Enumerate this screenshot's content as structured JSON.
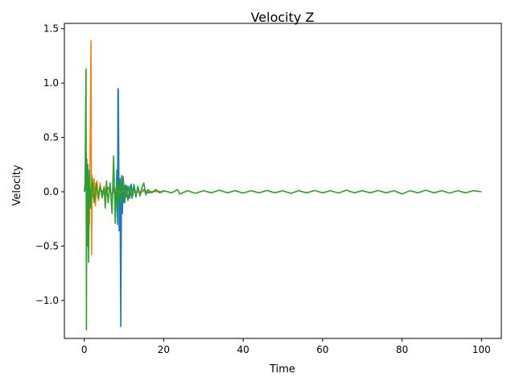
{
  "chart_data": {
    "type": "line",
    "title": "Velocity Z",
    "xlabel": "Time",
    "ylabel": "Velocity",
    "xlim": [
      -5,
      105
    ],
    "ylim": [
      -1.35,
      1.55
    ],
    "xticks": [
      0,
      20,
      40,
      60,
      80,
      100
    ],
    "xtick_labels": [
      "0",
      "20",
      "40",
      "60",
      "80",
      "100"
    ],
    "yticks": [
      -1.0,
      -0.5,
      0.0,
      0.5,
      1.0,
      1.5
    ],
    "ytick_labels": [
      "−1.0",
      "−0.5",
      "0.0",
      "0.5",
      "1.0",
      "1.5"
    ],
    "grid": false,
    "legend": "none",
    "series": [
      {
        "color": "#1f77b4",
        "x": [
          0,
          0.3,
          0.5,
          0.7,
          0.9,
          1.1,
          1.3,
          1.6,
          2.0,
          2.5,
          3.0,
          3.5,
          4.0,
          5.0,
          6.0,
          7.0,
          7.6,
          8.0,
          8.2,
          8.4,
          8.5,
          8.6,
          8.8,
          9.0,
          9.2,
          9.4,
          9.6,
          9.8,
          10.0,
          10.3,
          10.6,
          11.0,
          11.4,
          11.8,
          12.2,
          12.6,
          13.0,
          13.5,
          14.0,
          15.0,
          16.0,
          18.0,
          20.0
        ],
        "y": [
          0.0,
          0.1,
          0.34,
          -0.2,
          0.25,
          -0.4,
          0.1,
          -0.05,
          0.06,
          -0.08,
          0.05,
          -0.04,
          0.03,
          -0.02,
          0.04,
          -0.03,
          0.05,
          -0.1,
          0.2,
          -0.3,
          0.95,
          0.93,
          -0.36,
          0.12,
          -1.24,
          0.15,
          -0.2,
          0.05,
          -0.1,
          0.06,
          -0.05,
          0.05,
          -0.06,
          0.07,
          -0.04,
          0.05,
          -0.03,
          0.04,
          -0.02,
          0.02,
          -0.01,
          0.005,
          0.0
        ]
      },
      {
        "color": "#ff7f0e",
        "x": [
          0,
          0.5,
          1.0,
          1.3,
          1.5,
          1.7,
          1.85,
          2.0,
          2.2,
          2.5,
          2.8,
          3.2,
          3.6,
          4.0,
          4.5,
          5.0,
          5.5,
          6.0,
          7.0,
          8.0,
          9.0,
          10.0,
          12.0,
          15.0,
          20.0
        ],
        "y": [
          0.0,
          0.05,
          0.1,
          -0.3,
          0.5,
          1.39,
          -0.58,
          0.15,
          -0.05,
          0.12,
          -0.13,
          0.1,
          -0.08,
          0.08,
          -0.06,
          0.05,
          -0.03,
          0.03,
          -0.02,
          0.02,
          -0.01,
          0.01,
          -0.005,
          0.003,
          0.0
        ]
      },
      {
        "color": "#2ca02c",
        "x": [
          0,
          0.2,
          0.35,
          0.45,
          0.55,
          0.65,
          0.8,
          0.95,
          1.1,
          1.3,
          1.6,
          2.0,
          2.5,
          3.0,
          3.5,
          4.0,
          4.5,
          5.0,
          5.3,
          5.6,
          6.0,
          6.5,
          7.0,
          7.4,
          7.8,
          8.2,
          8.6,
          9.0,
          9.4,
          9.8,
          10.2,
          10.6,
          11.0,
          11.5,
          12.0,
          12.5,
          13.0,
          13.5,
          14.0,
          14.5,
          15.0,
          15.5,
          16.0,
          17,
          18,
          19,
          20,
          22,
          23.5,
          24,
          26,
          28,
          30,
          32,
          34,
          36,
          38,
          40,
          42,
          44,
          46,
          48,
          50,
          52,
          54,
          56,
          58,
          60,
          62,
          64,
          66,
          68,
          70,
          72,
          74,
          76,
          78,
          80,
          82,
          84,
          86,
          88,
          90,
          92,
          94,
          96,
          98,
          100
        ],
        "y": [
          0.0,
          0.02,
          0.7,
          1.13,
          -1.27,
          0.3,
          -0.5,
          0.15,
          -0.65,
          0.2,
          -0.15,
          0.12,
          -0.1,
          0.08,
          -0.06,
          0.05,
          -0.05,
          0.04,
          -0.15,
          0.1,
          -0.1,
          0.08,
          -0.2,
          0.33,
          -0.29,
          0.1,
          -0.15,
          0.12,
          -0.08,
          0.14,
          -0.1,
          0.06,
          -0.08,
          0.05,
          -0.06,
          0.07,
          -0.05,
          0.05,
          -0.04,
          0.04,
          0.08,
          -0.03,
          0.02,
          -0.01,
          0.02,
          -0.01,
          0.01,
          -0.01,
          0.02,
          -0.02,
          0.01,
          -0.015,
          0.01,
          -0.01,
          0.015,
          -0.01,
          0.01,
          -0.012,
          0.01,
          -0.01,
          0.012,
          -0.01,
          0.01,
          -0.015,
          0.01,
          -0.01,
          0.012,
          -0.01,
          0.01,
          -0.012,
          0.015,
          -0.01,
          0.01,
          -0.01,
          0.012,
          -0.01,
          0.01,
          -0.02,
          0.01,
          -0.01,
          0.015,
          -0.01,
          0.01,
          -0.012,
          0.01,
          -0.01,
          0.01,
          0.0
        ]
      }
    ]
  }
}
